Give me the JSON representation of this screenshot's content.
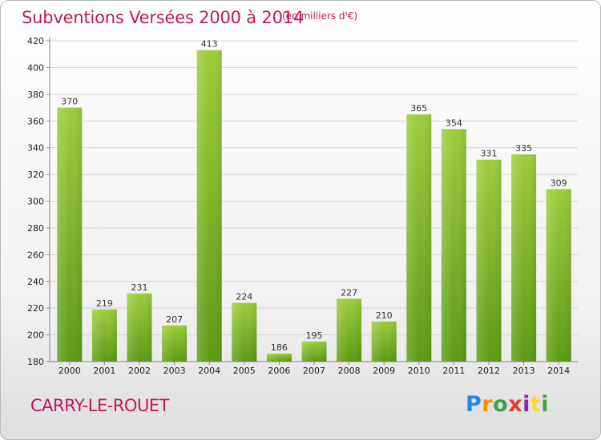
{
  "title": "Subventions Versées 2000 à 2014",
  "subtitle": "(en milliers d'€)",
  "town": "CARRY-LE-ROUET",
  "logo": {
    "letters": [
      "P",
      "r",
      "o",
      "x",
      "i",
      "t",
      "i"
    ],
    "colors": [
      "#1e88e5",
      "#fb8c00",
      "#43a047",
      "#e53935",
      "#8e24aa",
      "#fdd835",
      "#43a047"
    ]
  },
  "chart_data": {
    "type": "bar",
    "categories": [
      "2000",
      "2001",
      "2002",
      "2003",
      "2004",
      "2005",
      "2006",
      "2007",
      "2008",
      "2009",
      "2010",
      "2011",
      "2012",
      "2013",
      "2014"
    ],
    "values": [
      370,
      219,
      231,
      207,
      413,
      224,
      186,
      195,
      227,
      210,
      365,
      354,
      331,
      335,
      309
    ],
    "ylim": [
      180,
      420
    ],
    "yticks": [
      180,
      200,
      220,
      240,
      260,
      280,
      300,
      320,
      340,
      360,
      380,
      400,
      420
    ],
    "grid": true,
    "bar_color_top": "#9ccc3c",
    "bar_color_bottom": "#5e9a14"
  }
}
